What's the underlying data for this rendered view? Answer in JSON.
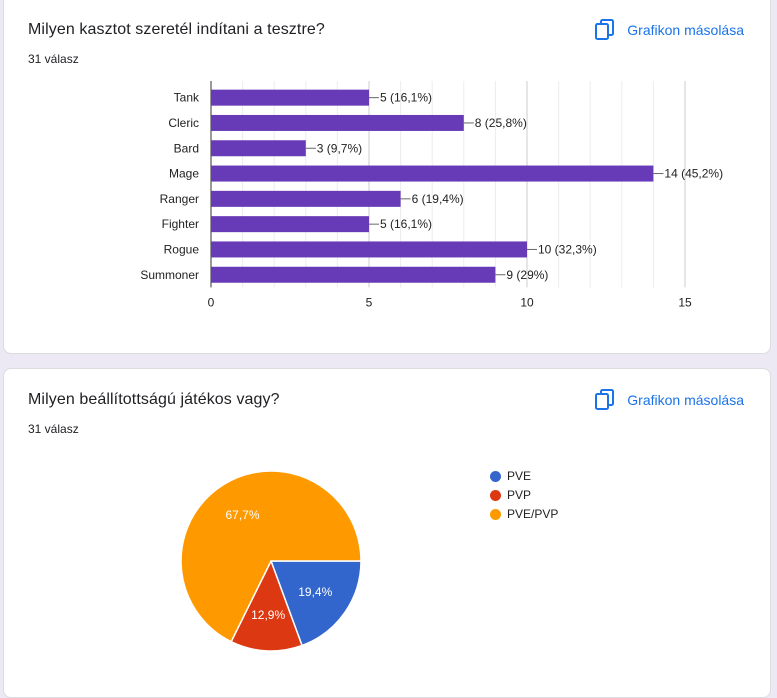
{
  "cards": [
    {
      "title": "Milyen kasztot szeretél indítani a tesztre?",
      "response_count": "31 válasz",
      "copy_label": "Grafikon másolása"
    },
    {
      "title": "Milyen beállítottságú játékos vagy?",
      "response_count": "31 válasz",
      "copy_label": "Grafikon másolása"
    }
  ],
  "colors": {
    "bar": "#673ab7",
    "link": "#1a73e8",
    "pve": "#3366cc",
    "pvp": "#dc3912",
    "pve_pvp": "#ff9900"
  },
  "icons": [
    "copy-icon"
  ],
  "chart_data": [
    {
      "type": "bar",
      "orientation": "horizontal",
      "categories": [
        "Tank",
        "Cleric",
        "Bard",
        "Mage",
        "Ranger",
        "Fighter",
        "Rogue",
        "Summoner"
      ],
      "values": [
        5,
        8,
        3,
        14,
        6,
        5,
        10,
        9
      ],
      "data_labels": [
        "5 (16,1%)",
        "8 (25,8%)",
        "3 (9,7%)",
        "14 (45,2%)",
        "6 (19,4%)",
        "5 (16,1%)",
        "10 (32,3%)",
        "9 (29%)"
      ],
      "xlim": [
        0,
        15
      ],
      "xticks": [
        "0",
        "5",
        "10",
        "15"
      ],
      "grid": true
    },
    {
      "type": "pie",
      "labels": [
        "PVE",
        "PVP",
        "PVE/PVP"
      ],
      "values": [
        19.4,
        12.9,
        67.7
      ],
      "slice_labels": [
        "19,4%",
        "12,9%",
        "67,7%"
      ],
      "legend": "right"
    }
  ]
}
